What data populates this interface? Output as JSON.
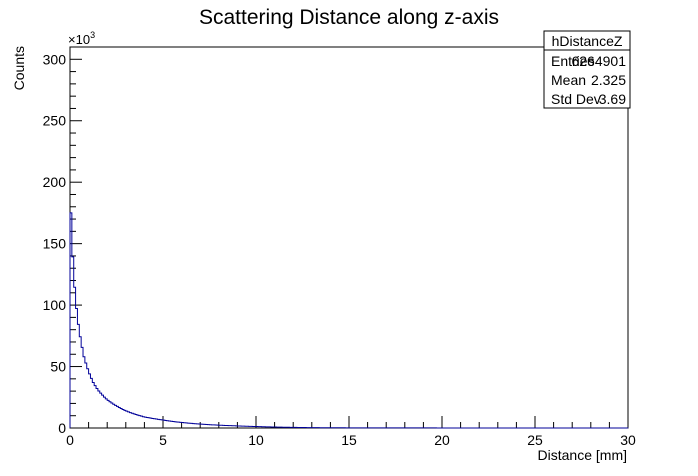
{
  "chart_data": {
    "type": "histogram",
    "title": "Scattering Distance along z-axis",
    "xlabel": "Distance [mm]",
    "ylabel": "Counts",
    "y_multiplier_label": "×10",
    "y_multiplier_exponent": "3",
    "xlim": [
      0,
      30
    ],
    "ylim": [
      0,
      310
    ],
    "x_ticks": [
      0,
      5,
      10,
      15,
      20,
      25,
      30
    ],
    "y_ticks": [
      0,
      50,
      100,
      150,
      200,
      250,
      300
    ],
    "line_color": "#000099",
    "grid": false,
    "stats_box": {
      "title": "hDistanceZ",
      "rows": [
        {
          "label": "Entries",
          "value": "6264901"
        },
        {
          "label": "Mean",
          "value": "2.325"
        },
        {
          "label": "Std Dev",
          "value": "3.69"
        }
      ]
    },
    "points": [
      {
        "x": 0.0,
        "y": 205
      },
      {
        "x": 0.05,
        "y": 175
      },
      {
        "x": 0.1,
        "y": 155
      },
      {
        "x": 0.2,
        "y": 125
      },
      {
        "x": 0.3,
        "y": 105
      },
      {
        "x": 0.4,
        "y": 90
      },
      {
        "x": 0.5,
        "y": 79
      },
      {
        "x": 0.75,
        "y": 58
      },
      {
        "x": 1.0,
        "y": 46
      },
      {
        "x": 1.25,
        "y": 37
      },
      {
        "x": 1.5,
        "y": 31
      },
      {
        "x": 2.0,
        "y": 23
      },
      {
        "x": 2.5,
        "y": 18
      },
      {
        "x": 3.0,
        "y": 14
      },
      {
        "x": 4.0,
        "y": 9
      },
      {
        "x": 5.0,
        "y": 6.5
      },
      {
        "x": 6.0,
        "y": 4.5
      },
      {
        "x": 7.0,
        "y": 3.2
      },
      {
        "x": 8.0,
        "y": 2.3
      },
      {
        "x": 9.0,
        "y": 1.7
      },
      {
        "x": 10.0,
        "y": 1.2
      },
      {
        "x": 11.0,
        "y": 0.8
      },
      {
        "x": 12.0,
        "y": 0.5
      },
      {
        "x": 13.0,
        "y": 0.3
      },
      {
        "x": 14.0,
        "y": 0.2
      },
      {
        "x": 16.0,
        "y": 0.1
      },
      {
        "x": 20.0,
        "y": 0.05
      },
      {
        "x": 25.0,
        "y": 0.02
      },
      {
        "x": 30.0,
        "y": 0.01
      }
    ]
  }
}
